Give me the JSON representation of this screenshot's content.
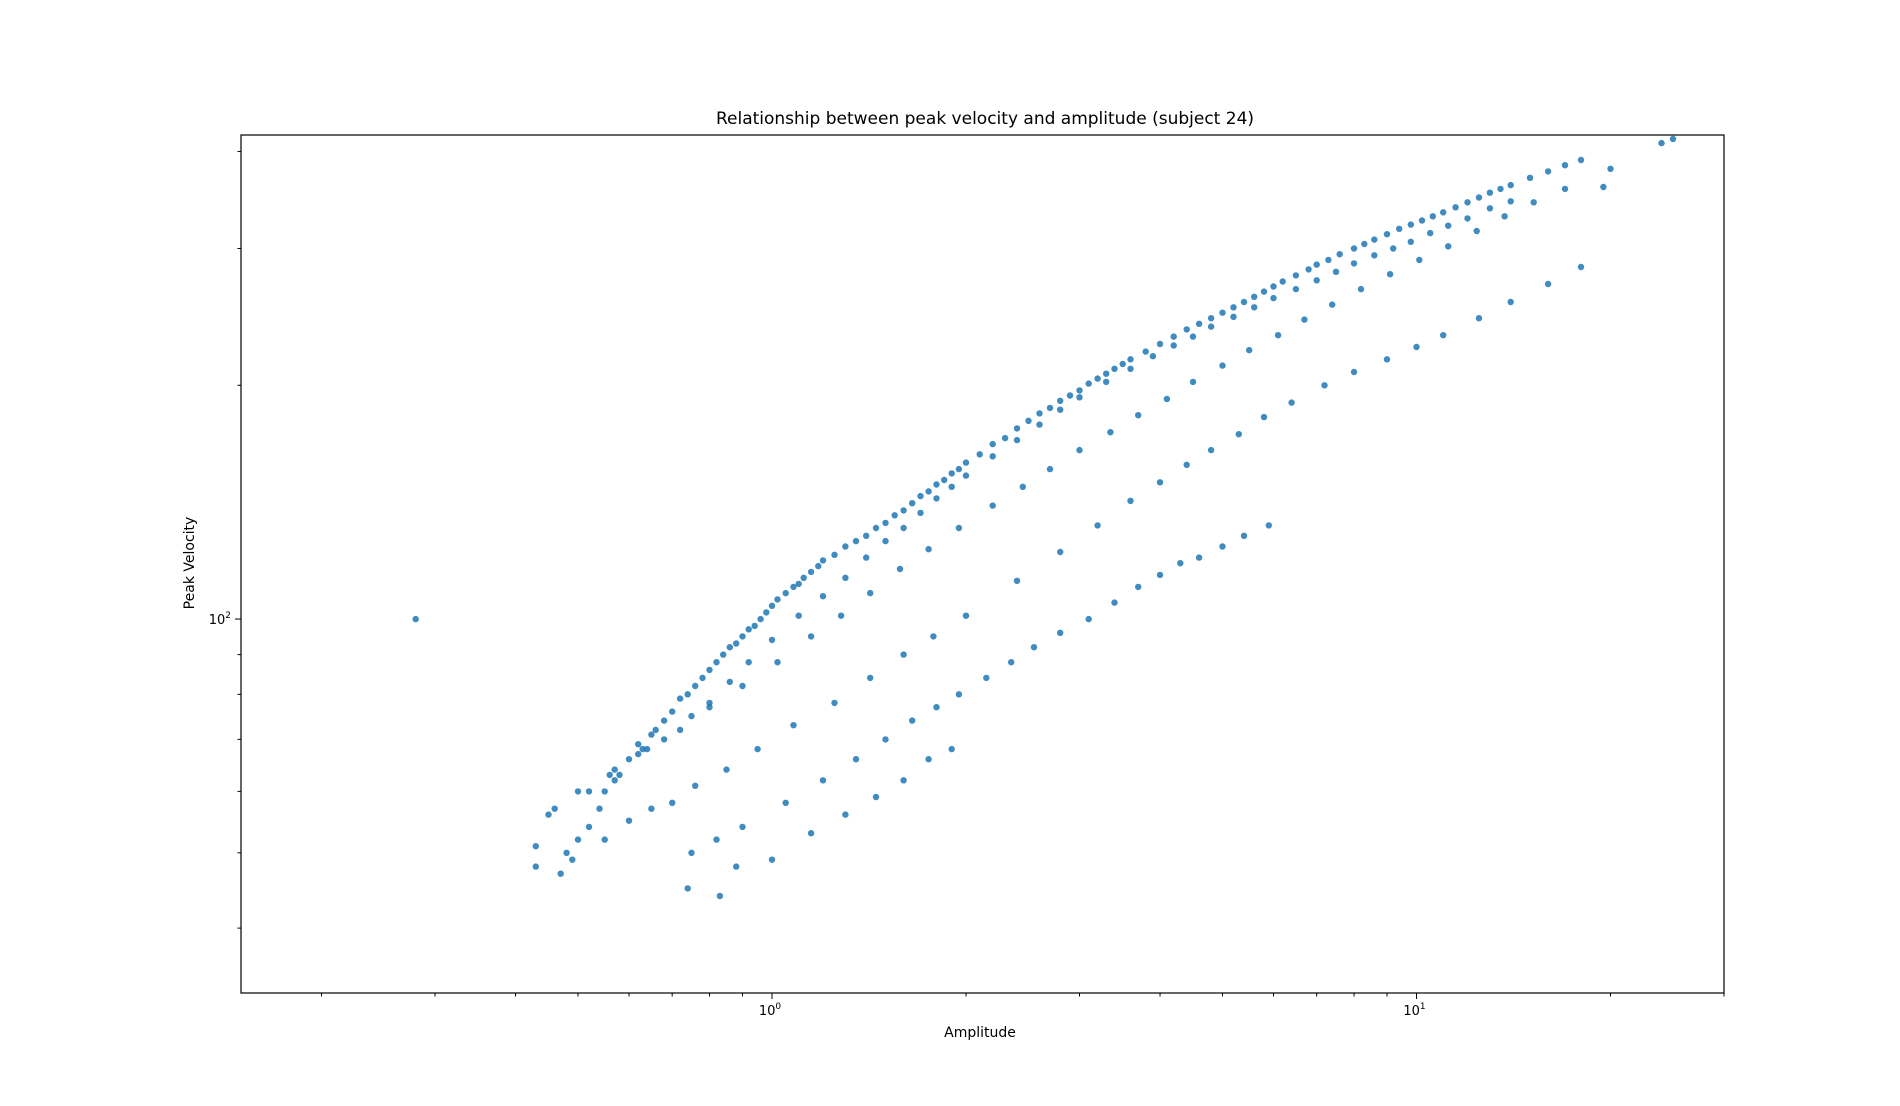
{
  "chart_data": {
    "type": "scatter",
    "title": "Relationship between peak velocity and amplitude (subject 24)",
    "xlabel": "Amplitude",
    "ylabel": "Peak Velocity",
    "xscale": "log",
    "yscale": "log",
    "xlim": [
      0.15,
      30
    ],
    "ylim": [
      33,
      420
    ],
    "grid": false,
    "legend": "none",
    "marker_color": "#1f77b4",
    "x_ticks": [
      {
        "value": 1,
        "base": "10",
        "exp": "0"
      },
      {
        "value": 10,
        "base": "10",
        "exp": "1"
      }
    ],
    "y_ticks": [
      {
        "value": 100,
        "base": "10",
        "exp": "2"
      }
    ],
    "series": [
      {
        "x": [
          0.28,
          0.43,
          0.45,
          0.47,
          0.49,
          0.5,
          0.52,
          0.54,
          0.55,
          0.57,
          0.58,
          0.6,
          0.62,
          0.63,
          0.65,
          0.66,
          0.68,
          0.7,
          0.72,
          0.74,
          0.76,
          0.78,
          0.8,
          0.82,
          0.84,
          0.86,
          0.88,
          0.9,
          0.92,
          0.94,
          0.96,
          0.98,
          1.0,
          1.02,
          1.05,
          1.08,
          1.1,
          1.12,
          1.15,
          1.18,
          1.2,
          1.25,
          1.3,
          1.35,
          1.4,
          1.45,
          1.5,
          1.55,
          1.6,
          1.65,
          1.7,
          1.75,
          1.8,
          1.85,
          1.9,
          1.95,
          2.0,
          2.1,
          2.2,
          2.3,
          2.4,
          2.5,
          2.6,
          2.7,
          2.8,
          2.9,
          3.0,
          3.1,
          3.2,
          3.3,
          3.4,
          3.5,
          3.6,
          3.8,
          4.0,
          4.2,
          4.4,
          4.6,
          4.8,
          5.0,
          5.2,
          5.4,
          5.6,
          5.8,
          6.0,
          6.2,
          6.5,
          6.8,
          7.0,
          7.3,
          7.6,
          8.0,
          8.3,
          8.6,
          9.0,
          9.4,
          9.8,
          10.2,
          10.6,
          11.0,
          11.5,
          12.0,
          12.5,
          13.0,
          13.5,
          14.0,
          15.0,
          16.0,
          17.0,
          18.0,
          19.5,
          20.0,
          24.0,
          25.0,
          0.46,
          0.52,
          0.57,
          0.62,
          0.68,
          0.75,
          0.8,
          0.86,
          0.92,
          1.0,
          1.1,
          1.2,
          1.3,
          1.4,
          1.5,
          1.6,
          1.7,
          1.8,
          1.9,
          2.0,
          2.2,
          2.4,
          2.6,
          2.8,
          3.0,
          3.3,
          3.6,
          3.9,
          4.2,
          4.5,
          4.8,
          5.2,
          5.6,
          6.0,
          6.5,
          7.0,
          7.5,
          8.0,
          8.6,
          9.2,
          9.8,
          10.5,
          11.2,
          12.0,
          13.0,
          14.0,
          0.75,
          0.82,
          0.9,
          1.05,
          1.2,
          1.35,
          1.5,
          1.65,
          1.8,
          1.95,
          2.15,
          2.35,
          2.55,
          2.8,
          3.1,
          3.4,
          3.7,
          4.0,
          4.3,
          4.6,
          5.0,
          5.4,
          5.9,
          0.74,
          0.83,
          0.88,
          1.0,
          1.15,
          1.3,
          1.45,
          1.6,
          1.75,
          1.9,
          0.43,
          0.48,
          0.55,
          0.6,
          0.65,
          0.7,
          0.76,
          0.85,
          0.95,
          1.08,
          1.25,
          1.42,
          1.6,
          1.78,
          2.0,
          2.4,
          2.8,
          3.2,
          3.6,
          4.0,
          4.4,
          4.8,
          5.3,
          5.8,
          6.4,
          7.2,
          8.0,
          9.0,
          10.0,
          11.0,
          12.5,
          14.0,
          16.0,
          18.0,
          0.5,
          0.56,
          0.64,
          0.72,
          0.8,
          0.9,
          1.02,
          1.15,
          1.28,
          1.42,
          1.58,
          1.75,
          1.95,
          2.2,
          2.45,
          2.7,
          3.0,
          3.35,
          3.7,
          4.1,
          4.5,
          5.0,
          5.5,
          6.1,
          6.7,
          7.4,
          8.2,
          9.1,
          10.1,
          11.2,
          12.4,
          13.7,
          15.2,
          17.0
        ],
        "y": [
          100,
          51,
          56,
          47,
          49,
          52,
          54,
          57,
          60,
          62,
          63,
          66,
          69,
          68,
          71,
          72,
          74,
          76,
          79,
          80,
          82,
          84,
          86,
          88,
          90,
          92,
          93,
          95,
          97,
          98,
          100,
          102,
          104,
          106,
          108,
          110,
          111,
          113,
          115,
          117,
          119,
          121,
          124,
          126,
          128,
          131,
          133,
          136,
          138,
          141,
          144,
          146,
          149,
          151,
          154,
          156,
          159,
          163,
          168,
          171,
          176,
          180,
          184,
          187,
          191,
          194,
          197,
          201,
          204,
          207,
          210,
          213,
          216,
          221,
          226,
          231,
          236,
          240,
          244,
          248,
          252,
          256,
          260,
          264,
          268,
          272,
          277,
          282,
          286,
          290,
          295,
          300,
          304,
          308,
          313,
          318,
          322,
          326,
          330,
          334,
          339,
          344,
          349,
          354,
          358,
          362,
          370,
          377,
          384,
          390,
          360,
          380,
          410,
          415,
          57,
          60,
          64,
          67,
          70,
          75,
          78,
          83,
          88,
          94,
          101,
          107,
          113,
          120,
          126,
          131,
          137,
          143,
          148,
          153,
          162,
          170,
          178,
          186,
          193,
          202,
          210,
          218,
          225,
          231,
          238,
          245,
          252,
          259,
          266,
          273,
          280,
          287,
          294,
          300,
          306,
          314,
          321,
          328,
          338,
          345,
          50,
          52,
          54,
          58,
          62,
          66,
          70,
          74,
          77,
          80,
          84,
          88,
          92,
          96,
          100,
          105,
          110,
          114,
          118,
          120,
          124,
          128,
          132,
          45,
          44,
          48,
          49,
          53,
          56,
          59,
          62,
          66,
          68,
          48,
          50,
          52,
          55,
          57,
          58,
          61,
          64,
          68,
          73,
          78,
          84,
          90,
          95,
          101,
          112,
          122,
          132,
          142,
          150,
          158,
          165,
          173,
          182,
          190,
          200,
          208,
          216,
          224,
          232,
          244,
          256,
          270,
          284,
          60,
          63,
          68,
          72,
          77,
          82,
          88,
          95,
          101,
          108,
          116,
          123,
          131,
          140,
          148,
          156,
          165,
          174,
          183,
          192,
          202,
          212,
          222,
          232,
          243,
          254,
          266,
          278,
          290,
          302,
          316,
          330,
          344,
          358
        ]
      }
    ]
  }
}
